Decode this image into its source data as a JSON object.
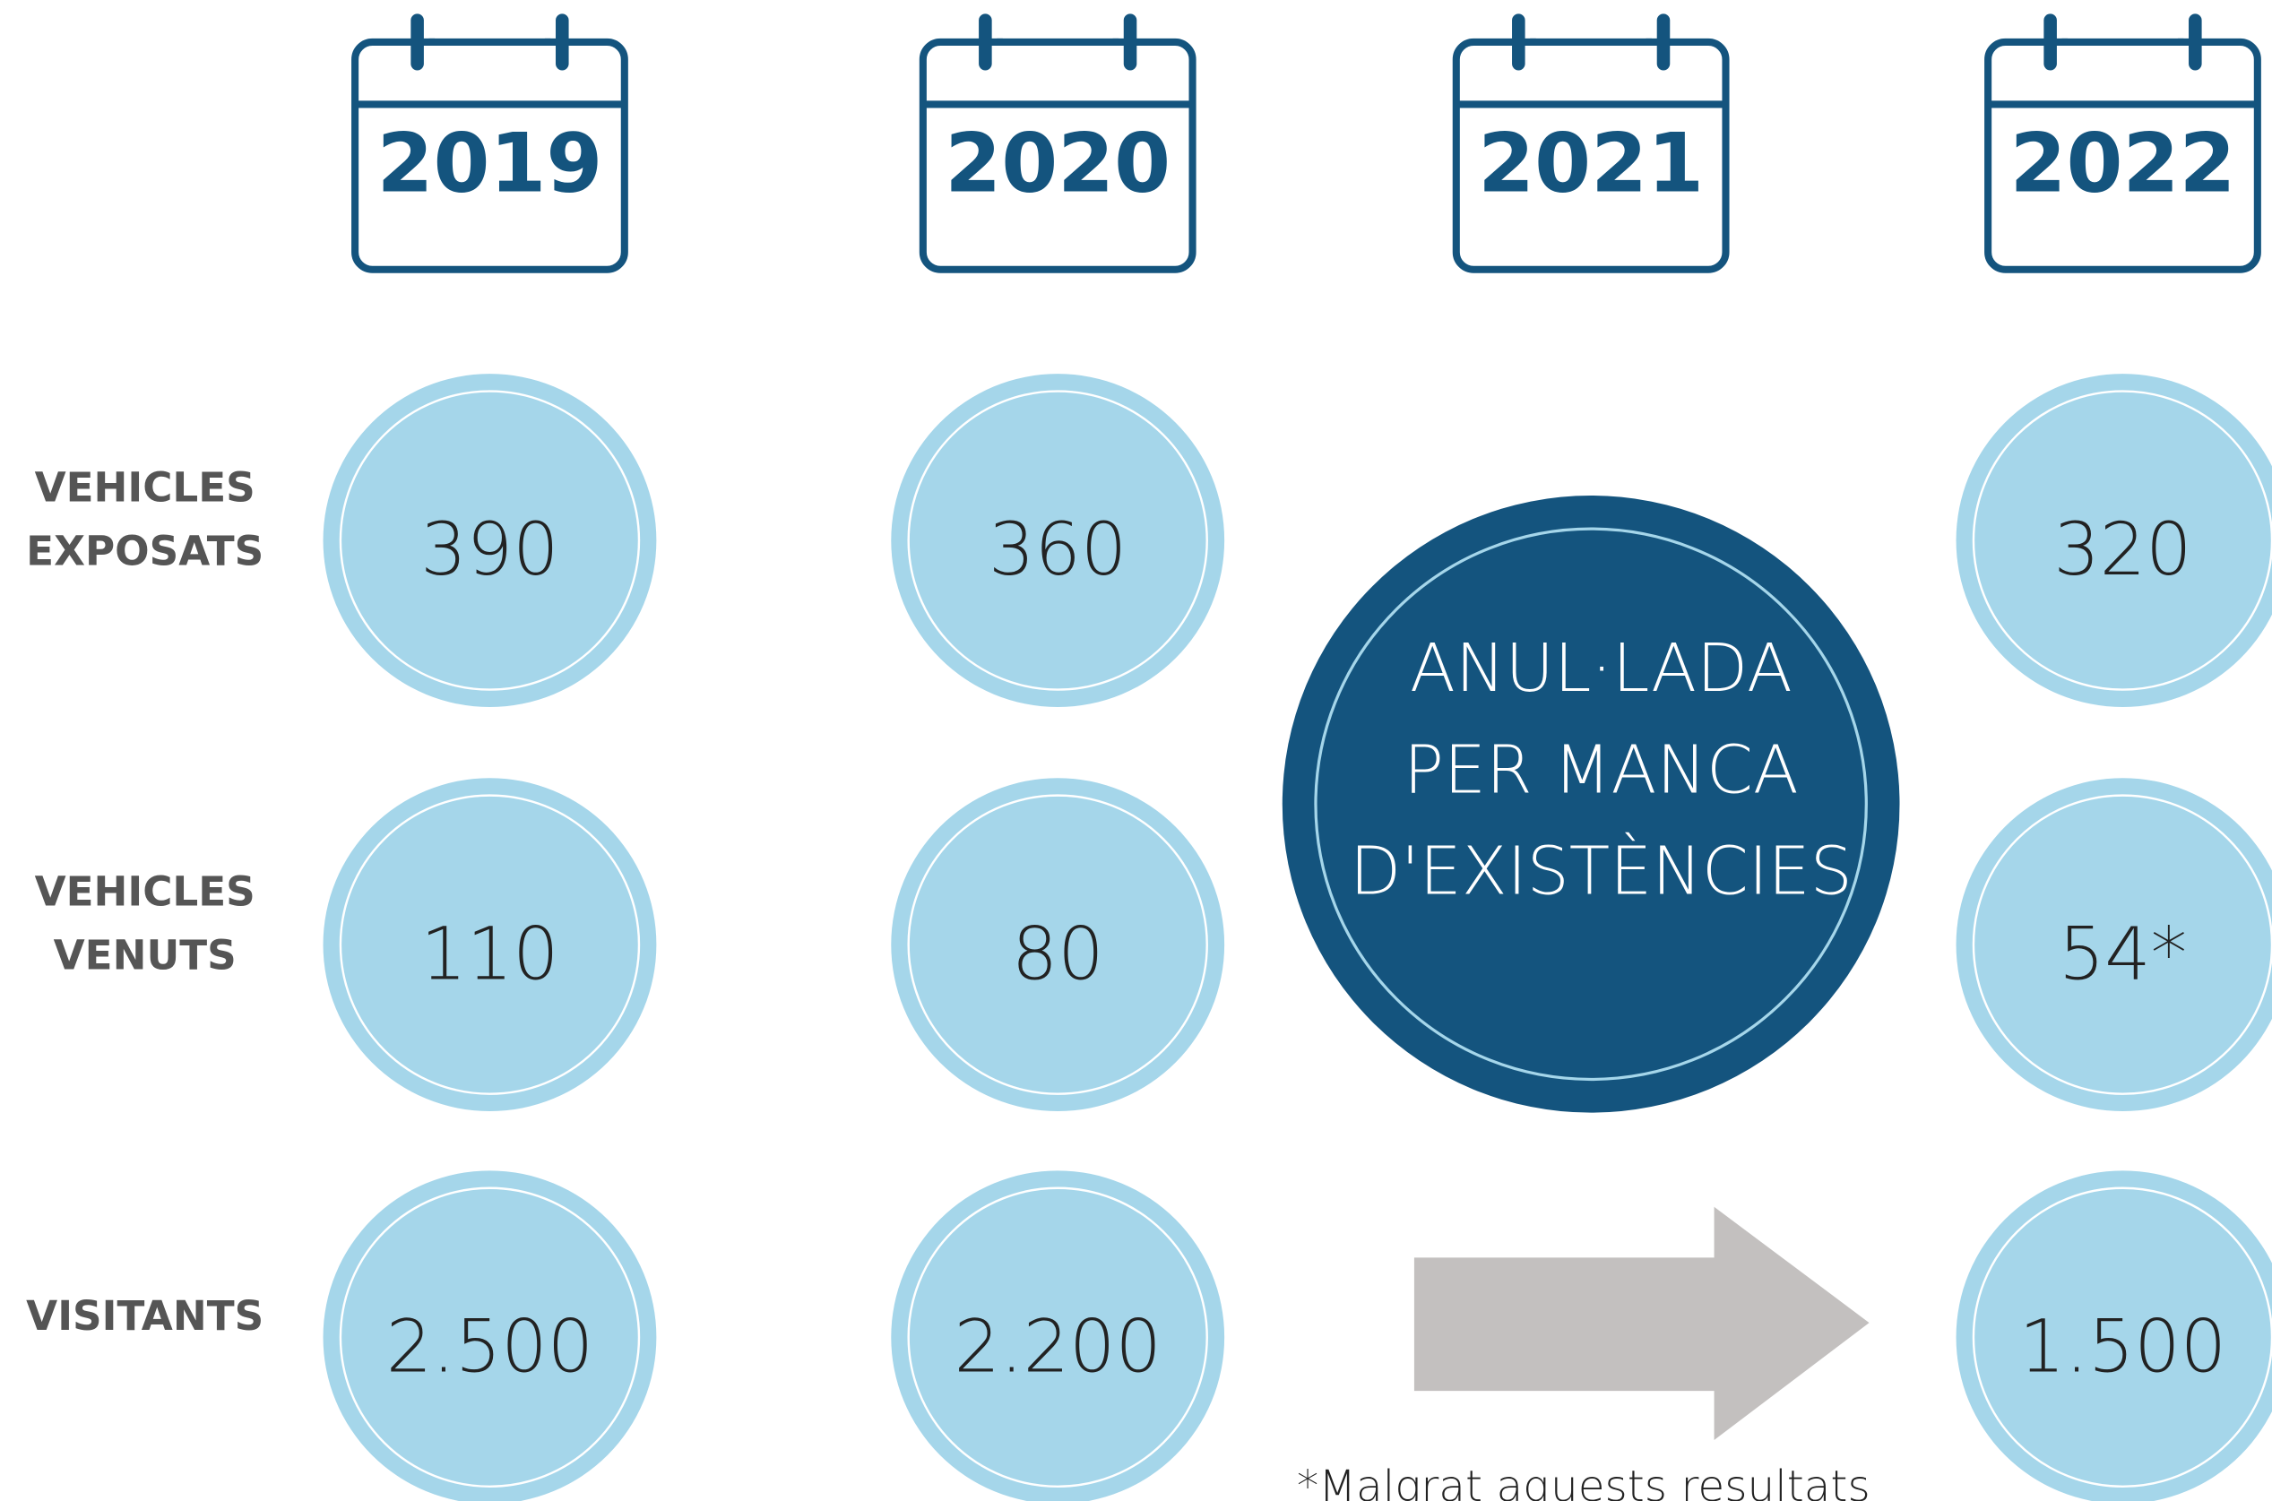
{
  "years": [
    "2019",
    "2020",
    "2021",
    "2022"
  ],
  "rows": [
    {
      "label_lines": [
        "VEHICLES",
        "EXPOSATS"
      ],
      "values": [
        "390",
        "360",
        "320"
      ]
    },
    {
      "label_lines": [
        "VEHICLES",
        "VENUTS"
      ],
      "values": [
        "110",
        "80",
        "54*"
      ]
    },
    {
      "label_lines": [
        "VISITANTS"
      ],
      "values": [
        "2.500",
        "2.200",
        "1.500"
      ]
    }
  ],
  "cancelled_lines": [
    "ANUL·LADA",
    "PER MANCA",
    "D'EXISTÈNCIES"
  ],
  "footnote": "*Malgrat aquests resultats"
}
